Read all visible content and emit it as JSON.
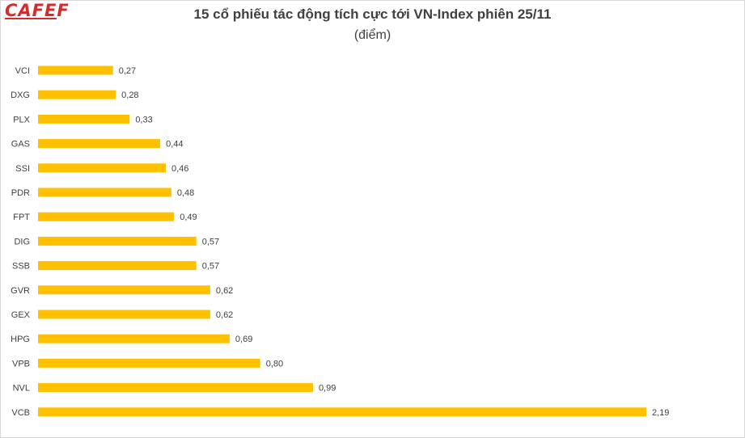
{
  "brand": {
    "logo_text": "CAFEF",
    "accent_color": "#d62b2b"
  },
  "chart_data": {
    "type": "bar",
    "orientation": "horizontal",
    "title": "15 cổ phiếu tác động tích cực tới VN-Index phiên 25/11",
    "subtitle": "(điểm)",
    "xlabel": "",
    "ylabel": "",
    "grid": false,
    "legend": "none",
    "bar_color": "#ffc000",
    "xlim": [
      0,
      2.19
    ],
    "categories": [
      "VCI",
      "DXG",
      "PLX",
      "GAS",
      "SSI",
      "PDR",
      "FPT",
      "DIG",
      "SSB",
      "GVR",
      "GEX",
      "HPG",
      "VPB",
      "NVL",
      "VCB"
    ],
    "values": [
      0.27,
      0.28,
      0.33,
      0.44,
      0.46,
      0.48,
      0.49,
      0.57,
      0.57,
      0.62,
      0.62,
      0.69,
      0.8,
      0.99,
      2.19
    ],
    "value_labels": [
      "0,27",
      "0,28",
      "0,33",
      "0,44",
      "0,46",
      "0,48",
      "0,49",
      "0,57",
      "0,57",
      "0,62",
      "0,62",
      "0,69",
      "0,80",
      "0,99",
      "2,19"
    ]
  }
}
